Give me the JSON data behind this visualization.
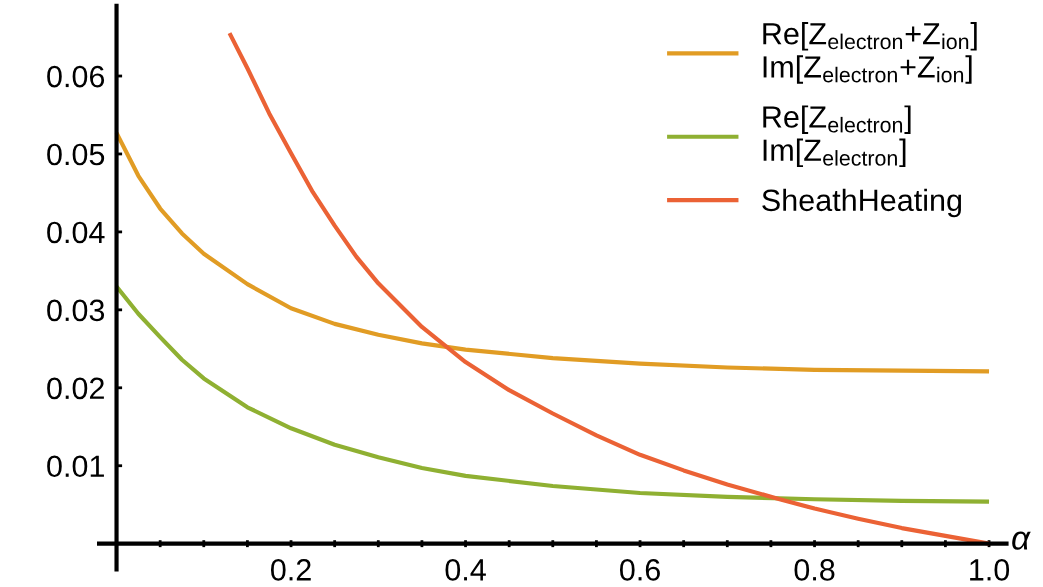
{
  "chart_data": {
    "type": "line",
    "xlabel": "α",
    "xlim": [
      -0.02,
      1.02
    ],
    "ylim": [
      -0.0033,
      0.069
    ],
    "xticks": [
      {
        "value": 0.05,
        "label": null
      },
      {
        "value": 0.1,
        "label": null
      },
      {
        "value": 0.15,
        "label": null
      },
      0.2,
      {
        "value": 0.25,
        "label": null
      },
      {
        "value": 0.3,
        "label": null
      },
      {
        "value": 0.35,
        "label": null
      },
      0.4,
      {
        "value": 0.45,
        "label": null
      },
      {
        "value": 0.5,
        "label": null
      },
      {
        "value": 0.55,
        "label": null
      },
      0.6,
      {
        "value": 0.65,
        "label": null
      },
      {
        "value": 0.7,
        "label": null
      },
      {
        "value": 0.75,
        "label": null
      },
      0.8,
      {
        "value": 0.85,
        "label": null
      },
      {
        "value": 0.9,
        "label": null
      },
      {
        "value": 0.95,
        "label": null
      },
      {
        "value": 1.0,
        "label": "1.0"
      }
    ],
    "yticks": [
      0.01,
      0.02,
      0.03,
      0.04,
      0.05,
      0.06
    ],
    "grid": false,
    "legend": "top right",
    "line_style": "solid",
    "marker": "none",
    "series": [
      {
        "name": "Re[Z$_{electron}$+Z$_{ion}$]\nIm[Z$_{electron}$+Z$_{ion}$]",
        "color": "#e19c24",
        "x": [
          0,
          0.025,
          0.05,
          0.075,
          0.1,
          0.15,
          0.2,
          0.25,
          0.3,
          0.35,
          0.4,
          0.5,
          0.6,
          0.7,
          0.8,
          0.9,
          1.0
        ],
        "values": [
          0.0527,
          0.0472,
          0.043,
          0.0398,
          0.0372,
          0.0333,
          0.0302,
          0.0282,
          0.0268,
          0.0257,
          0.0249,
          0.0238,
          0.0231,
          0.0226,
          0.0223,
          0.0222,
          0.0221
        ]
      },
      {
        "name": "Re[Z$_{electron}$]\nIm[Z$_{electron}$]",
        "color": "#8fb032",
        "x": [
          0,
          0.025,
          0.05,
          0.075,
          0.1,
          0.15,
          0.2,
          0.25,
          0.3,
          0.35,
          0.4,
          0.5,
          0.6,
          0.7,
          0.8,
          0.9,
          1.0
        ],
        "values": [
          0.033,
          0.0295,
          0.0265,
          0.0236,
          0.0212,
          0.0175,
          0.0148,
          0.0127,
          0.0111,
          0.0097,
          0.0087,
          0.0074,
          0.0065,
          0.006,
          0.0057,
          0.0055,
          0.0054
        ]
      },
      {
        "name": "SheathHeating",
        "color": "#eb6235",
        "x": [
          0.1295,
          0.15,
          0.175,
          0.2,
          0.225,
          0.25,
          0.275,
          0.3,
          0.35,
          0.4,
          0.45,
          0.5,
          0.55,
          0.6,
          0.65,
          0.7,
          0.76,
          0.8,
          0.85,
          0.9,
          0.95,
          1.0
        ],
        "values": [
          0.0655,
          0.061,
          0.0552,
          0.0501,
          0.0451,
          0.0408,
          0.0368,
          0.0334,
          0.0278,
          0.0233,
          0.0197,
          0.0167,
          0.0139,
          0.0114,
          0.0094,
          0.0076,
          0.0057,
          0.0045,
          0.0032,
          0.002,
          0.001,
          0.0
        ]
      }
    ]
  }
}
